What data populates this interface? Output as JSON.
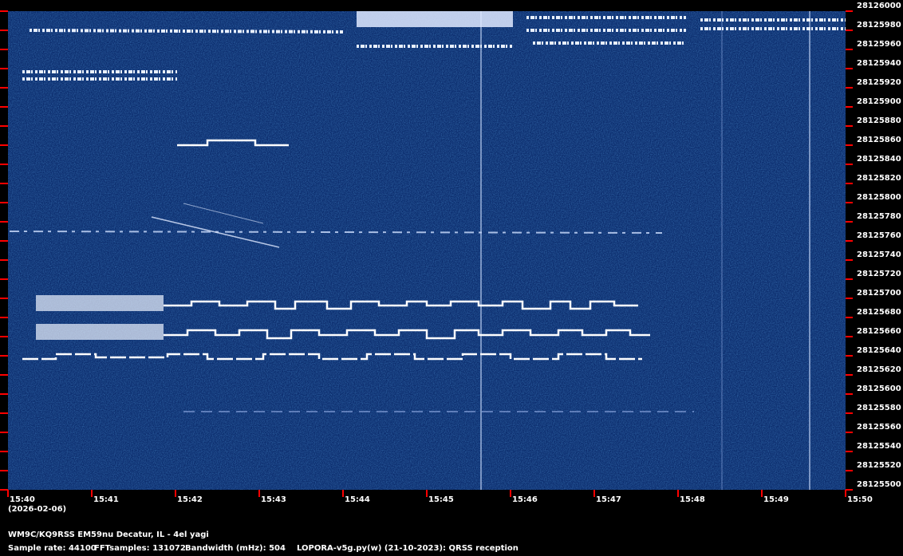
{
  "chart_data": {
    "type": "spectrogram",
    "x": [
      "15:40",
      "15:41",
      "15:42",
      "15:43",
      "15:44",
      "15:45",
      "15:46",
      "15:47",
      "15:48",
      "15:49",
      "15:50"
    ],
    "date": "(2026-02-06)",
    "ylim": [
      28125500,
      28126000
    ],
    "yticks": [
      28125500,
      28125520,
      28125540,
      28125560,
      28125580,
      28125600,
      28125620,
      28125640,
      28125660,
      28125680,
      28125700,
      28125720,
      28125740,
      28125760,
      28125780,
      28125800,
      28125820,
      28125840,
      28125860,
      28125880,
      28125900,
      28125920,
      28125940,
      28125960,
      28125980,
      28126000
    ],
    "tick_color": "#ff0000",
    "background_color": "#0c2d6e",
    "footer": {
      "station": "WM9C/KQ9RSS EM59nu Decatur, IL - 4el yagi",
      "sample_rate": "Sample rate: 44100",
      "fft_samples": "FFTsamples: 131072",
      "bandwidth": "Bandwidth (mHz): 504",
      "software": "LOPORA-v5g.py(w) (21-10-2023): QRSS reception"
    }
  }
}
